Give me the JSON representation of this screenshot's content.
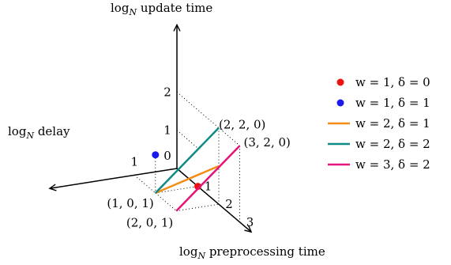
{
  "chart_data": {
    "type": "line",
    "axes": {
      "update": {
        "label": "log_N update time",
        "ticks": [
          "1",
          "2"
        ]
      },
      "delay": {
        "label": "log_N delay",
        "ticks": [
          "1"
        ]
      },
      "preprocessing": {
        "label": "log_N preprocessing time",
        "ticks": [
          "1",
          "2",
          "3"
        ]
      }
    },
    "origin_label": "0",
    "point_labels": [
      "(2, 2, 0)",
      "(3, 2, 0)",
      "(1, 0, 1)",
      "(2, 0, 1)"
    ],
    "series": [
      {
        "name": "w = 1, δ = 0",
        "kind": "point",
        "color": "#ee1111",
        "points": [
          [
            1,
            0,
            0
          ]
        ]
      },
      {
        "name": "w = 1, δ = 1",
        "kind": "point",
        "color": "#1a1aee",
        "points": [
          [
            1,
            1,
            1
          ]
        ]
      },
      {
        "name": "w = 2, δ = 1",
        "kind": "line",
        "color": "#f28c13",
        "points": [
          [
            1,
            0,
            1
          ],
          [
            2,
            1,
            0
          ]
        ]
      },
      {
        "name": "w = 2, δ = 2",
        "kind": "line",
        "color": "#0f8a86",
        "points": [
          [
            1,
            0,
            1
          ],
          [
            2,
            2,
            0
          ]
        ]
      },
      {
        "name": "w = 3, δ = 2",
        "kind": "line",
        "color": "#e5137a",
        "points": [
          [
            2,
            0,
            1
          ],
          [
            3,
            2,
            0
          ]
        ]
      }
    ],
    "legend_position": "right"
  }
}
